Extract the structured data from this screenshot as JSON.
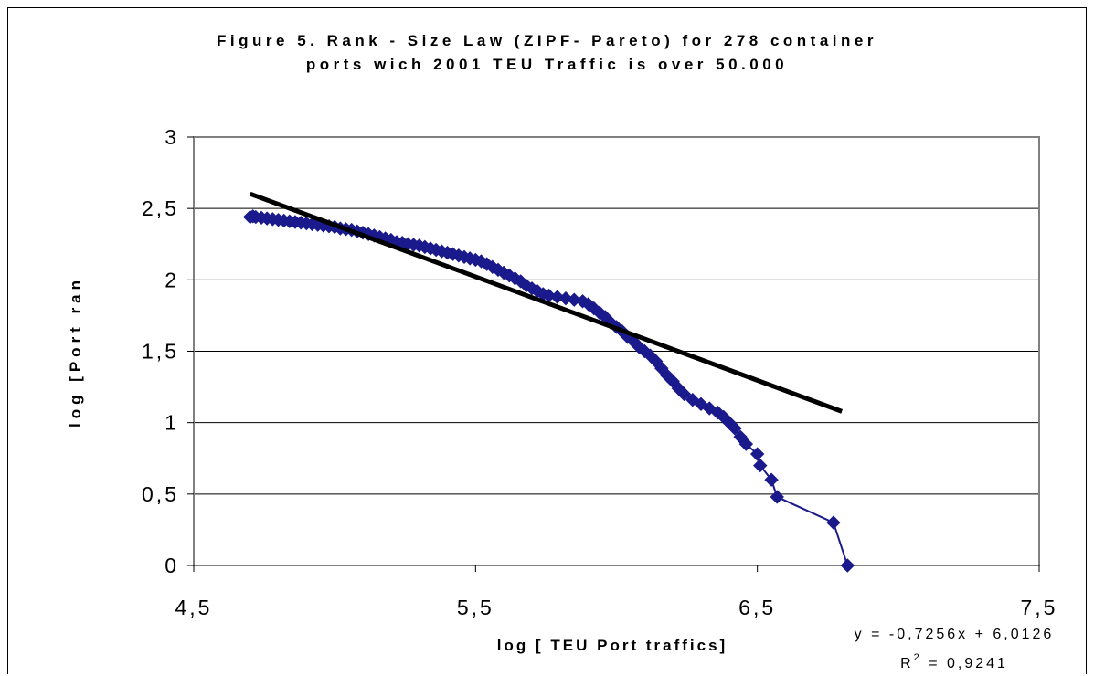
{
  "chart_data": {
    "type": "scatter",
    "title_line1": "Figure 5. Rank - Size  Law (ZIPF- Pareto) for 278 container",
    "title_line2": "ports wich  2001 TEU Traffic is over 50.000",
    "xlabel": "log [ TEU Port traffics]",
    "ylabel": "log [Port ran",
    "xlim": [
      4.5,
      7.5
    ],
    "ylim": [
      0,
      3
    ],
    "grid": "horizontal",
    "x_ticks": [
      {
        "value": 4.5,
        "label": "4,5"
      },
      {
        "value": 5.5,
        "label": "5,5"
      },
      {
        "value": 6.5,
        "label": "6,5"
      },
      {
        "value": 7.5,
        "label": "7,5"
      }
    ],
    "y_ticks": [
      {
        "value": 0,
        "label": "0"
      },
      {
        "value": 0.5,
        "label": "0,5"
      },
      {
        "value": 1,
        "label": "1"
      },
      {
        "value": 1.5,
        "label": "1,5"
      },
      {
        "value": 2,
        "label": "2"
      },
      {
        "value": 2.5,
        "label": "2,5"
      },
      {
        "value": 3,
        "label": "3"
      }
    ],
    "series": [
      {
        "color": "#1a1a8c",
        "marker": "diamond",
        "points": [
          [
            4.7,
            2.44
          ],
          [
            4.71,
            2.445
          ],
          [
            4.72,
            2.44
          ],
          [
            4.74,
            2.435
          ],
          [
            4.76,
            2.43
          ],
          [
            4.78,
            2.425
          ],
          [
            4.8,
            2.42
          ],
          [
            4.82,
            2.415
          ],
          [
            4.84,
            2.41
          ],
          [
            4.86,
            2.405
          ],
          [
            4.88,
            2.4
          ],
          [
            4.9,
            2.395
          ],
          [
            4.92,
            2.39
          ],
          [
            4.94,
            2.385
          ],
          [
            4.96,
            2.38
          ],
          [
            4.98,
            2.375
          ],
          [
            5.0,
            2.37
          ],
          [
            5.02,
            2.36
          ],
          [
            5.04,
            2.355
          ],
          [
            5.06,
            2.35
          ],
          [
            5.08,
            2.34
          ],
          [
            5.1,
            2.33
          ],
          [
            5.12,
            2.32
          ],
          [
            5.14,
            2.31
          ],
          [
            5.16,
            2.3
          ],
          [
            5.18,
            2.29
          ],
          [
            5.2,
            2.28
          ],
          [
            5.22,
            2.265
          ],
          [
            5.24,
            2.26
          ],
          [
            5.26,
            2.25
          ],
          [
            5.28,
            2.245
          ],
          [
            5.3,
            2.24
          ],
          [
            5.32,
            2.23
          ],
          [
            5.34,
            2.22
          ],
          [
            5.36,
            2.21
          ],
          [
            5.38,
            2.2
          ],
          [
            5.4,
            2.19
          ],
          [
            5.42,
            2.18
          ],
          [
            5.44,
            2.17
          ],
          [
            5.46,
            2.16
          ],
          [
            5.48,
            2.15
          ],
          [
            5.5,
            2.14
          ],
          [
            5.52,
            2.13
          ],
          [
            5.54,
            2.11
          ],
          [
            5.56,
            2.09
          ],
          [
            5.58,
            2.07
          ],
          [
            5.6,
            2.05
          ],
          [
            5.62,
            2.03
          ],
          [
            5.64,
            2.01
          ],
          [
            5.66,
            1.99
          ],
          [
            5.68,
            1.96
          ],
          [
            5.7,
            1.94
          ],
          [
            5.72,
            1.92
          ],
          [
            5.74,
            1.9
          ],
          [
            5.76,
            1.89
          ],
          [
            5.79,
            1.88
          ],
          [
            5.82,
            1.87
          ],
          [
            5.85,
            1.86
          ],
          [
            5.88,
            1.85
          ],
          [
            5.9,
            1.83
          ],
          [
            5.92,
            1.8
          ],
          [
            5.94,
            1.77
          ],
          [
            5.96,
            1.74
          ],
          [
            5.98,
            1.7
          ],
          [
            6.0,
            1.67
          ],
          [
            6.02,
            1.64
          ],
          [
            6.04,
            1.6
          ],
          [
            6.06,
            1.57
          ],
          [
            6.08,
            1.53
          ],
          [
            6.1,
            1.5
          ],
          [
            6.12,
            1.47
          ],
          [
            6.14,
            1.43
          ],
          [
            6.16,
            1.38
          ],
          [
            6.18,
            1.33
          ],
          [
            6.2,
            1.29
          ],
          [
            6.22,
            1.24
          ],
          [
            6.24,
            1.2
          ],
          [
            6.27,
            1.16
          ],
          [
            6.3,
            1.13
          ],
          [
            6.33,
            1.1
          ],
          [
            6.36,
            1.07
          ],
          [
            6.38,
            1.04
          ],
          [
            6.4,
            1.0
          ],
          [
            6.42,
            0.96
          ],
          [
            6.44,
            0.9
          ],
          [
            6.46,
            0.85
          ],
          [
            6.5,
            0.78
          ],
          [
            6.51,
            0.7
          ],
          [
            6.55,
            0.6
          ],
          [
            6.57,
            0.48
          ],
          [
            6.77,
            0.3
          ],
          [
            6.82,
            0.0
          ]
        ]
      }
    ],
    "trendline": {
      "type": "linear",
      "slope": -0.7256,
      "intercept": 6.0126,
      "x_range": [
        4.7,
        6.8
      ],
      "equation": "y = -0,7256x + 6,0126",
      "r2_label": "R",
      "r2_sup": "2",
      "r2_value": " = 0,9241"
    }
  }
}
